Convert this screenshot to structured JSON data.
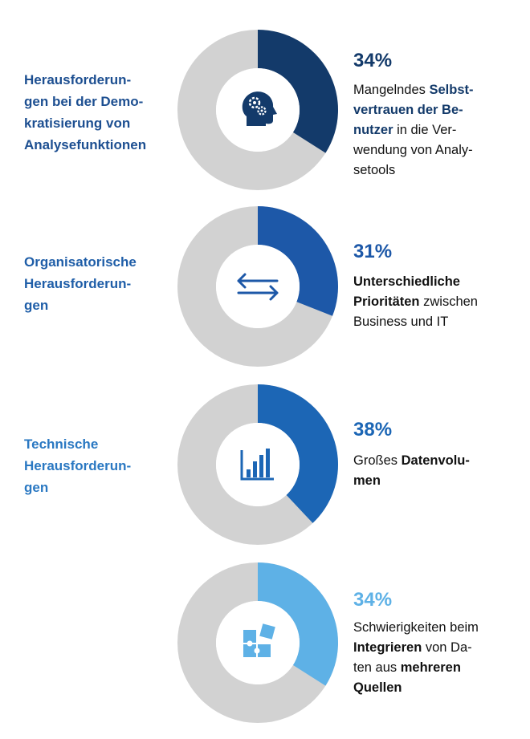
{
  "chart_data": [
    {
      "type": "pie",
      "category": "Herausforderun-gen bei der Demo-kratisierung von Analysefunktionen",
      "category_lines": [
        "Herausforderun-",
        "gen bei der Demo-",
        "kratisierung von",
        "Analysefunktionen"
      ],
      "value": 34,
      "label": "34%",
      "description": "Mangelndes Selbstvertrauen der Benutzer in die Verwendung von Analysetools",
      "description_lines": [
        [
          {
            "t": "Mangelndes "
          },
          {
            "t": "Selbst-",
            "hl": true
          }
        ],
        [
          {
            "t": "vertrauen der Be-",
            "hl": true
          }
        ],
        [
          {
            "t": "nutzer",
            "hl": true
          },
          {
            "t": " in die Ver-"
          }
        ],
        [
          {
            "t": "wendung von Analy-"
          }
        ],
        [
          {
            "t": "setools"
          }
        ]
      ],
      "color": "#133a6a",
      "icon": "head-gears-icon"
    },
    {
      "type": "pie",
      "category": "Organisatorische Herausforderungen",
      "category_lines": [
        "Organisatorische",
        "Herausforderun-",
        "gen"
      ],
      "value": 31,
      "label": "31%",
      "description": "Unterschiedliche Prioritäten zwischen Business und IT",
      "description_lines": [
        [
          {
            "t": "Unterschiedliche",
            "b": true
          }
        ],
        [
          {
            "t": "Prioritäten",
            "b": true
          },
          {
            "t": " zwischen"
          }
        ],
        [
          {
            "t": "Business und IT"
          }
        ]
      ],
      "color": "#1d58a8",
      "icon": "swap-arrows-icon"
    },
    {
      "type": "pie",
      "category": "Technische Herausforderungen",
      "category_lines": [
        "Technische",
        "Herausforderun-",
        "gen"
      ],
      "value": 38,
      "label": "38%",
      "description": "Großes Datenvolumen",
      "description_lines": [
        [
          {
            "t": "Großes "
          },
          {
            "t": "Datenvolu-",
            "b": true
          }
        ],
        [
          {
            "t": "men",
            "b": true
          }
        ]
      ],
      "color": "#1c66b5",
      "icon": "bar-chart-icon"
    },
    {
      "type": "pie",
      "category": "",
      "category_lines": [],
      "value": 34,
      "label": "34%",
      "description": "Schwierigkeiten beim Integrieren von Daten aus mehreren Quellen",
      "description_lines": [
        [
          {
            "t": "Schwierigkeiten beim"
          }
        ],
        [
          {
            "t": "Integrieren",
            "b": true
          },
          {
            "t": " von Da-"
          }
        ],
        [
          {
            "t": "ten aus "
          },
          {
            "t": "mehreren",
            "b": true
          }
        ],
        [
          {
            "t": "Quellen",
            "b": true
          }
        ]
      ],
      "color": "#5eb1e6",
      "icon": "puzzle-icon"
    }
  ],
  "style": {
    "track_color": "#d2d2d2",
    "category_colors": [
      "#1d4f91",
      "#1f5ea8",
      "#2a78c2",
      "#5eb1e6"
    ]
  }
}
